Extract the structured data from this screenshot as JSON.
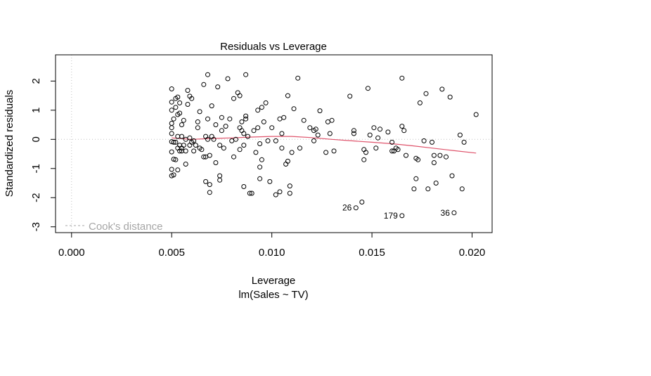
{
  "chart_data": {
    "type": "scatter",
    "title": "Residuals vs Leverage",
    "xlabel": "Leverage",
    "subtitle": "lm(Sales ~ TV)",
    "ylabel": "Standardized residuals",
    "xlim": [
      -0.0008,
      0.021
    ],
    "ylim": [
      -3.2,
      2.9
    ],
    "x_ticks": [
      "0.000",
      "0.005",
      "0.010",
      "0.015",
      "0.020"
    ],
    "x_tick_values": [
      0.0,
      0.005,
      0.01,
      0.015,
      0.02
    ],
    "y_ticks": [
      "-3",
      "-2",
      "-1",
      "0",
      "1",
      "2"
    ],
    "y_tick_values": [
      -3,
      -2,
      -1,
      0,
      1,
      2
    ],
    "grid": false,
    "reference_lines": {
      "x": 0,
      "y": 0,
      "style": "dotted"
    },
    "legend": {
      "label": "Cook's distance",
      "position": "bottom-left"
    },
    "colors": {
      "points": "#000000",
      "smoother": "#df536b",
      "reference": "#c0c0c0",
      "legend": "#a6a6a6"
    },
    "points": [
      [
        0.005,
        1.73
      ],
      [
        0.005,
        1.28
      ],
      [
        0.005,
        1.0
      ],
      [
        0.005,
        0.55
      ],
      [
        0.005,
        0.4
      ],
      [
        0.005,
        0.2
      ],
      [
        0.005,
        -0.08
      ],
      [
        0.005,
        -0.43
      ],
      [
        0.005,
        -1.03
      ],
      [
        0.005,
        -1.25
      ],
      [
        0.0051,
        -1.22
      ],
      [
        0.0051,
        -0.68
      ],
      [
        0.0051,
        -0.1
      ],
      [
        0.0051,
        0.7
      ],
      [
        0.0052,
        1.4
      ],
      [
        0.0052,
        1.1
      ],
      [
        0.0052,
        -0.1
      ],
      [
        0.0052,
        -0.7
      ],
      [
        0.0053,
        1.45
      ],
      [
        0.0053,
        0.85
      ],
      [
        0.0053,
        0.1
      ],
      [
        0.0053,
        -0.3
      ],
      [
        0.0053,
        -1.05
      ],
      [
        0.0054,
        1.25
      ],
      [
        0.0054,
        0.9
      ],
      [
        0.0054,
        -0.2
      ],
      [
        0.0054,
        -0.4
      ],
      [
        0.0055,
        0.5
      ],
      [
        0.0055,
        0.1
      ],
      [
        0.0055,
        -0.3
      ],
      [
        0.0055,
        -0.4
      ],
      [
        0.0056,
        0.65
      ],
      [
        0.0056,
        -0.2
      ],
      [
        0.0057,
        0.0
      ],
      [
        0.0057,
        -0.4
      ],
      [
        0.0057,
        -0.85
      ],
      [
        0.0058,
        1.68
      ],
      [
        0.0058,
        1.2
      ],
      [
        0.0059,
        1.48
      ],
      [
        0.0059,
        0.05
      ],
      [
        0.0059,
        -0.2
      ],
      [
        0.006,
        1.4
      ],
      [
        0.006,
        -0.1
      ],
      [
        0.0061,
        -0.4
      ],
      [
        0.0061,
        -0.05
      ],
      [
        0.0062,
        -0.2
      ],
      [
        0.0063,
        0.4
      ],
      [
        0.0063,
        0.6
      ],
      [
        0.0064,
        0.95
      ],
      [
        0.0064,
        -0.3
      ],
      [
        0.0065,
        -0.35
      ],
      [
        0.0066,
        1.88
      ],
      [
        0.0066,
        -0.6
      ],
      [
        0.0067,
        0.1
      ],
      [
        0.0067,
        -0.6
      ],
      [
        0.0067,
        -1.45
      ],
      [
        0.0068,
        2.22
      ],
      [
        0.0068,
        0.7
      ],
      [
        0.0068,
        0.0
      ],
      [
        0.0069,
        -0.55
      ],
      [
        0.0069,
        -1.55
      ],
      [
        0.0069,
        -1.82
      ],
      [
        0.007,
        1.15
      ],
      [
        0.007,
        0.1
      ],
      [
        0.0071,
        0.0
      ],
      [
        0.0072,
        -0.8
      ],
      [
        0.0072,
        0.5
      ],
      [
        0.0073,
        1.8
      ],
      [
        0.0074,
        -0.2
      ],
      [
        0.0074,
        -1.4
      ],
      [
        0.0074,
        -1.25
      ],
      [
        0.0075,
        0.75
      ],
      [
        0.0075,
        0.3
      ],
      [
        0.0076,
        -0.3
      ],
      [
        0.0077,
        0.45
      ],
      [
        0.0078,
        2.08
      ],
      [
        0.0079,
        0.7
      ],
      [
        0.008,
        -0.05
      ],
      [
        0.0081,
        1.4
      ],
      [
        0.0081,
        -0.6
      ],
      [
        0.0082,
        0.0
      ],
      [
        0.0083,
        1.6
      ],
      [
        0.0084,
        1.5
      ],
      [
        0.0084,
        0.4
      ],
      [
        0.0084,
        -0.35
      ],
      [
        0.0085,
        0.6
      ],
      [
        0.0085,
        0.3
      ],
      [
        0.0086,
        0.2
      ],
      [
        0.0086,
        -0.2
      ],
      [
        0.0086,
        -1.62
      ],
      [
        0.0087,
        2.22
      ],
      [
        0.0087,
        0.7
      ],
      [
        0.0087,
        0.8
      ],
      [
        0.0088,
        0.1
      ],
      [
        0.0089,
        -1.85
      ],
      [
        0.009,
        -1.85
      ],
      [
        0.0091,
        0.3
      ],
      [
        0.0092,
        -0.45
      ],
      [
        0.0093,
        1.0
      ],
      [
        0.0093,
        0.4
      ],
      [
        0.0094,
        -0.15
      ],
      [
        0.0094,
        -0.95
      ],
      [
        0.0094,
        -1.35
      ],
      [
        0.0095,
        1.1
      ],
      [
        0.0095,
        -0.7
      ],
      [
        0.0096,
        0.6
      ],
      [
        0.0097,
        1.25
      ],
      [
        0.0098,
        -0.05
      ],
      [
        0.0099,
        -1.45
      ],
      [
        0.01,
        0.4
      ],
      [
        0.0102,
        -1.9
      ],
      [
        0.0102,
        -0.05
      ],
      [
        0.0104,
        0.7
      ],
      [
        0.0104,
        -1.8
      ],
      [
        0.0105,
        0.2
      ],
      [
        0.0105,
        -0.3
      ],
      [
        0.0106,
        0.75
      ],
      [
        0.0107,
        -0.85
      ],
      [
        0.0108,
        1.5
      ],
      [
        0.0108,
        -0.75
      ],
      [
        0.0109,
        -1.85
      ],
      [
        0.0109,
        -1.6
      ],
      [
        0.011,
        -0.45
      ],
      [
        0.0111,
        1.05
      ],
      [
        0.0113,
        2.1
      ],
      [
        0.0114,
        -0.3
      ],
      [
        0.0116,
        0.65
      ],
      [
        0.0119,
        0.4
      ],
      [
        0.0121,
        -0.05
      ],
      [
        0.0121,
        0.3
      ],
      [
        0.0122,
        0.35
      ],
      [
        0.0123,
        0.15
      ],
      [
        0.0124,
        0.98
      ],
      [
        0.0127,
        -0.45
      ],
      [
        0.0128,
        0.6
      ],
      [
        0.0129,
        0.2
      ],
      [
        0.013,
        0.65
      ],
      [
        0.0131,
        -0.4
      ],
      [
        0.0139,
        1.48
      ],
      [
        0.0141,
        0.3
      ],
      [
        0.0141,
        0.2
      ],
      [
        0.0142,
        -2.35
      ],
      [
        0.0145,
        -2.15
      ],
      [
        0.0146,
        -0.35
      ],
      [
        0.0146,
        -0.7
      ],
      [
        0.0147,
        -0.45
      ],
      [
        0.0148,
        1.75
      ],
      [
        0.0149,
        0.15
      ],
      [
        0.0151,
        0.4
      ],
      [
        0.0152,
        -0.3
      ],
      [
        0.0153,
        0.05
      ],
      [
        0.0154,
        0.35
      ],
      [
        0.0158,
        0.25
      ],
      [
        0.016,
        -0.1
      ],
      [
        0.016,
        -0.4
      ],
      [
        0.0161,
        -0.4
      ],
      [
        0.0162,
        -0.3
      ],
      [
        0.0163,
        -0.35
      ],
      [
        0.0165,
        2.1
      ],
      [
        0.0165,
        -2.62
      ],
      [
        0.0165,
        0.45
      ],
      [
        0.0166,
        0.3
      ],
      [
        0.0167,
        -0.55
      ],
      [
        0.0171,
        -1.7
      ],
      [
        0.0172,
        -1.35
      ],
      [
        0.0172,
        -0.65
      ],
      [
        0.0173,
        -0.7
      ],
      [
        0.0174,
        1.25
      ],
      [
        0.0176,
        -0.05
      ],
      [
        0.0177,
        1.57
      ],
      [
        0.0178,
        -1.7
      ],
      [
        0.018,
        -0.1
      ],
      [
        0.0181,
        -0.55
      ],
      [
        0.0181,
        -0.8
      ],
      [
        0.0182,
        -1.5
      ],
      [
        0.0184,
        -0.55
      ],
      [
        0.0185,
        1.72
      ],
      [
        0.0187,
        -0.6
      ],
      [
        0.0189,
        1.45
      ],
      [
        0.019,
        -1.25
      ],
      [
        0.0191,
        -2.52
      ],
      [
        0.0194,
        0.15
      ],
      [
        0.0195,
        -1.7
      ],
      [
        0.0196,
        -0.1
      ],
      [
        0.0202,
        0.85
      ]
    ],
    "point_labels": [
      {
        "label": "26",
        "x": 0.0142,
        "y": -2.35
      },
      {
        "label": "179",
        "x": 0.0165,
        "y": -2.62
      },
      {
        "label": "36",
        "x": 0.0191,
        "y": -2.52
      }
    ],
    "smoother": [
      [
        0.005,
        0.05
      ],
      [
        0.006,
        0.0
      ],
      [
        0.007,
        0.03
      ],
      [
        0.008,
        0.05
      ],
      [
        0.009,
        0.08
      ],
      [
        0.01,
        0.1
      ],
      [
        0.011,
        0.1
      ],
      [
        0.012,
        0.06
      ],
      [
        0.013,
        0.0
      ],
      [
        0.014,
        -0.05
      ],
      [
        0.015,
        -0.1
      ],
      [
        0.016,
        -0.15
      ],
      [
        0.017,
        -0.22
      ],
      [
        0.018,
        -0.3
      ],
      [
        0.019,
        -0.38
      ],
      [
        0.0202,
        -0.47
      ]
    ]
  }
}
